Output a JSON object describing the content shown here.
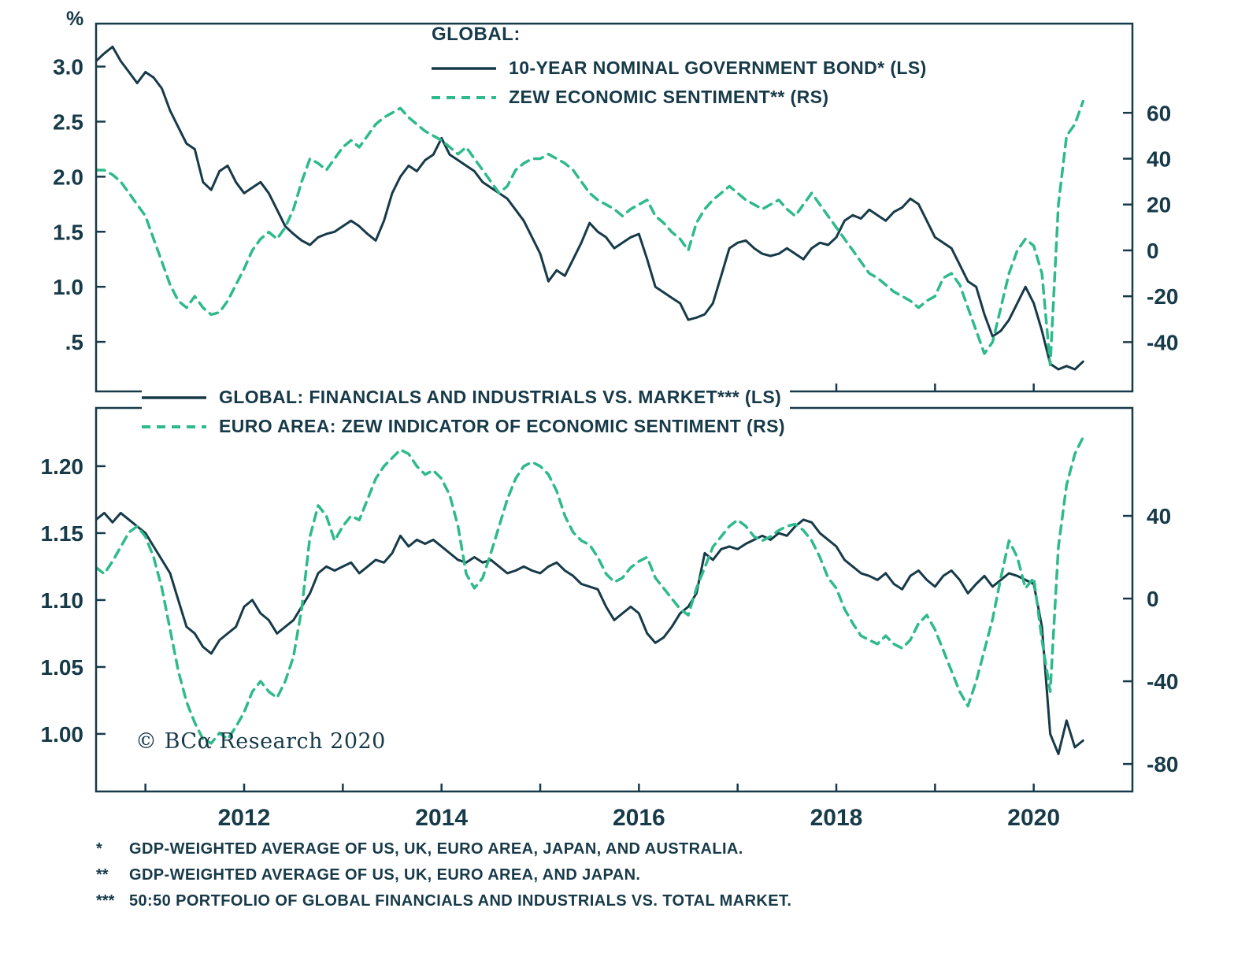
{
  "colors": {
    "dark_line": "#173a49",
    "green_line": "#2eba8b",
    "text": "#173a49",
    "background": "#ffffff"
  },
  "top_left_unit": "%",
  "legends": {
    "top": {
      "title": "GLOBAL:",
      "items": [
        {
          "label": "10-YEAR NOMINAL GOVERNMENT BOND* (LS)",
          "style": "solid"
        },
        {
          "label": "ZEW ECONOMIC SENTIMENT** (RS)",
          "style": "dashed"
        }
      ]
    },
    "bottom": {
      "items": [
        {
          "label": "GLOBAL: FINANCIALS AND INDUSTRIALS VS. MARKET*** (LS)",
          "style": "solid"
        },
        {
          "label": "EURO AREA: ZEW INDICATOR OF ECONOMIC SENTIMENT (RS)",
          "style": "dashed"
        }
      ]
    }
  },
  "copyright": "© BCα Research 2020",
  "footnotes": [
    {
      "marker": "*",
      "text": "GDP-WEIGHTED AVERAGE OF US, UK, EURO AREA, JAPAN, AND AUSTRALIA."
    },
    {
      "marker": "**",
      "text": "GDP-WEIGHTED AVERAGE OF US, UK, EURO AREA, AND JAPAN."
    },
    {
      "marker": "***",
      "text": "50:50 PORTFOLIO OF GLOBAL FINANCIALS AND INDUSTRIALS VS. TOTAL MARKET."
    }
  ],
  "x_axis": {
    "range": [
      2010.5,
      2021.0
    ],
    "tick_years": [
      2011,
      2012,
      2013,
      2014,
      2015,
      2016,
      2017,
      2018,
      2019,
      2020
    ],
    "labels": [
      {
        "label": "2012",
        "value": 2012
      },
      {
        "label": "2014",
        "value": 2014
      },
      {
        "label": "2016",
        "value": 2016
      },
      {
        "label": "2018",
        "value": 2018
      },
      {
        "label": "2020",
        "value": 2020
      }
    ]
  },
  "chart_data": [
    {
      "type": "line",
      "panel": "top",
      "title": "GLOBAL:",
      "x_start": 2010.5,
      "x_step": 0.0833333,
      "left_axis": {
        "unit": "%",
        "range": [
          0.05,
          3.39
        ],
        "ticks": [
          {
            "label": "3.0",
            "value": 3.0
          },
          {
            "label": "2.5",
            "value": 2.5
          },
          {
            "label": "2.0",
            "value": 2.0
          },
          {
            "label": "1.5",
            "value": 1.5
          },
          {
            "label": "1.0",
            "value": 1.0
          },
          {
            "label": ".5",
            "value": 0.5
          }
        ]
      },
      "right_axis": {
        "range": [
          -61.5,
          98.9
        ],
        "ticks": [
          {
            "label": "60",
            "value": 60
          },
          {
            "label": "40",
            "value": 40
          },
          {
            "label": "20",
            "value": 20
          },
          {
            "label": "0",
            "value": 0
          },
          {
            "label": "-20",
            "value": -20
          },
          {
            "label": "-40",
            "value": -40
          }
        ]
      },
      "series": [
        {
          "name": "10-YEAR NOMINAL GOVERNMENT BOND* (LS)",
          "axis": "left",
          "style": "solid",
          "values": [
            3.05,
            3.12,
            3.18,
            3.05,
            2.95,
            2.85,
            2.95,
            2.9,
            2.8,
            2.6,
            2.45,
            2.3,
            2.25,
            1.95,
            1.88,
            2.05,
            2.1,
            1.95,
            1.85,
            1.9,
            1.95,
            1.85,
            1.7,
            1.55,
            1.48,
            1.42,
            1.38,
            1.45,
            1.48,
            1.5,
            1.55,
            1.6,
            1.55,
            1.48,
            1.42,
            1.6,
            1.85,
            2.0,
            2.1,
            2.05,
            2.15,
            2.2,
            2.35,
            2.2,
            2.15,
            2.1,
            2.05,
            1.95,
            1.9,
            1.85,
            1.8,
            1.7,
            1.6,
            1.45,
            1.3,
            1.05,
            1.15,
            1.1,
            1.25,
            1.4,
            1.58,
            1.5,
            1.45,
            1.35,
            1.4,
            1.45,
            1.48,
            1.25,
            1.0,
            0.95,
            0.9,
            0.85,
            0.7,
            0.72,
            0.75,
            0.85,
            1.1,
            1.35,
            1.4,
            1.42,
            1.35,
            1.3,
            1.28,
            1.3,
            1.35,
            1.3,
            1.25,
            1.35,
            1.4,
            1.38,
            1.45,
            1.6,
            1.65,
            1.62,
            1.7,
            1.65,
            1.6,
            1.68,
            1.72,
            1.8,
            1.75,
            1.6,
            1.45,
            1.4,
            1.35,
            1.2,
            1.05,
            1.0,
            0.75,
            0.55,
            0.6,
            0.7,
            0.85,
            1.0,
            0.85,
            0.6,
            0.3,
            0.25,
            0.28,
            0.25,
            0.32
          ]
        },
        {
          "name": "ZEW ECONOMIC SENTIMENT** (RS)",
          "axis": "right",
          "style": "dashed",
          "values": [
            35,
            35,
            33,
            30,
            25,
            20,
            15,
            5,
            -5,
            -15,
            -22,
            -25,
            -20,
            -25,
            -28,
            -27,
            -22,
            -15,
            -8,
            0,
            5,
            8,
            5,
            10,
            18,
            30,
            40,
            38,
            35,
            40,
            45,
            48,
            45,
            50,
            55,
            58,
            60,
            62,
            58,
            55,
            52,
            50,
            48,
            45,
            42,
            45,
            40,
            35,
            30,
            25,
            28,
            35,
            38,
            40,
            40,
            42,
            40,
            38,
            35,
            30,
            25,
            22,
            20,
            18,
            15,
            18,
            20,
            22,
            15,
            12,
            8,
            5,
            0,
            12,
            18,
            22,
            25,
            28,
            25,
            22,
            20,
            18,
            20,
            22,
            18,
            15,
            20,
            25,
            20,
            15,
            10,
            5,
            0,
            -5,
            -10,
            -12,
            -15,
            -18,
            -20,
            -22,
            -25,
            -22,
            -20,
            -12,
            -10,
            -15,
            -25,
            -35,
            -45,
            -40,
            -25,
            -10,
            0,
            5,
            2,
            -10,
            -50,
            20,
            50,
            55,
            65
          ]
        }
      ]
    },
    {
      "type": "line",
      "panel": "bottom",
      "x_start": 2010.5,
      "x_step": 0.0833333,
      "left_axis": {
        "range": [
          0.957,
          1.2435
        ],
        "ticks": [
          {
            "label": "1.20",
            "value": 1.2
          },
          {
            "label": "1.15",
            "value": 1.15
          },
          {
            "label": "1.10",
            "value": 1.1
          },
          {
            "label": "1.05",
            "value": 1.05
          },
          {
            "label": "1.00",
            "value": 1.0
          }
        ]
      },
      "right_axis": {
        "range": [
          -93.3,
          92.2
        ],
        "ticks": [
          {
            "label": "40",
            "value": 40
          },
          {
            "label": "0",
            "value": 0
          },
          {
            "label": "-40",
            "value": -40
          },
          {
            "label": "-80",
            "value": -80
          }
        ]
      },
      "series": [
        {
          "name": "GLOBAL: FINANCIALS AND INDUSTRIALS VS. MARKET*** (LS)",
          "axis": "left",
          "style": "solid",
          "values": [
            1.16,
            1.165,
            1.158,
            1.165,
            1.16,
            1.155,
            1.15,
            1.14,
            1.13,
            1.12,
            1.1,
            1.08,
            1.075,
            1.065,
            1.06,
            1.07,
            1.075,
            1.08,
            1.095,
            1.1,
            1.09,
            1.085,
            1.075,
            1.08,
            1.085,
            1.095,
            1.105,
            1.12,
            1.125,
            1.122,
            1.125,
            1.128,
            1.12,
            1.125,
            1.13,
            1.128,
            1.135,
            1.148,
            1.14,
            1.145,
            1.142,
            1.145,
            1.14,
            1.135,
            1.13,
            1.128,
            1.132,
            1.128,
            1.13,
            1.125,
            1.12,
            1.122,
            1.125,
            1.122,
            1.12,
            1.125,
            1.128,
            1.122,
            1.118,
            1.112,
            1.11,
            1.108,
            1.095,
            1.085,
            1.09,
            1.095,
            1.09,
            1.075,
            1.068,
            1.072,
            1.08,
            1.09,
            1.095,
            1.105,
            1.135,
            1.13,
            1.138,
            1.14,
            1.138,
            1.142,
            1.145,
            1.148,
            1.145,
            1.15,
            1.148,
            1.155,
            1.16,
            1.158,
            1.15,
            1.145,
            1.14,
            1.13,
            1.125,
            1.12,
            1.118,
            1.115,
            1.12,
            1.112,
            1.108,
            1.118,
            1.122,
            1.115,
            1.11,
            1.118,
            1.122,
            1.115,
            1.105,
            1.112,
            1.118,
            1.11,
            1.115,
            1.12,
            1.118,
            1.115,
            1.112,
            1.08,
            1.0,
            0.985,
            1.01,
            0.99,
            0.995
          ]
        },
        {
          "name": "EURO AREA: ZEW INDICATOR OF ECONOMIC SENTIMENT (RS)",
          "axis": "right",
          "style": "dashed",
          "values": [
            15,
            12,
            18,
            25,
            32,
            35,
            30,
            20,
            5,
            -15,
            -35,
            -50,
            -60,
            -68,
            -70,
            -65,
            -68,
            -62,
            -55,
            -45,
            -40,
            -45,
            -48,
            -40,
            -28,
            -5,
            30,
            45,
            40,
            28,
            35,
            40,
            38,
            48,
            58,
            64,
            68,
            72,
            70,
            64,
            60,
            62,
            58,
            50,
            35,
            12,
            5,
            10,
            22,
            35,
            48,
            58,
            64,
            66,
            64,
            60,
            52,
            40,
            32,
            28,
            26,
            20,
            12,
            8,
            10,
            15,
            18,
            20,
            10,
            5,
            0,
            -5,
            -8,
            5,
            15,
            25,
            30,
            35,
            38,
            35,
            30,
            28,
            30,
            33,
            35,
            36,
            33,
            28,
            20,
            10,
            5,
            -5,
            -12,
            -18,
            -20,
            -22,
            -18,
            -22,
            -24,
            -20,
            -12,
            -8,
            -15,
            -25,
            -35,
            -45,
            -52,
            -40,
            -25,
            -10,
            10,
            28,
            20,
            5,
            10,
            -20,
            -45,
            25,
            55,
            70,
            78
          ]
        }
      ]
    }
  ]
}
